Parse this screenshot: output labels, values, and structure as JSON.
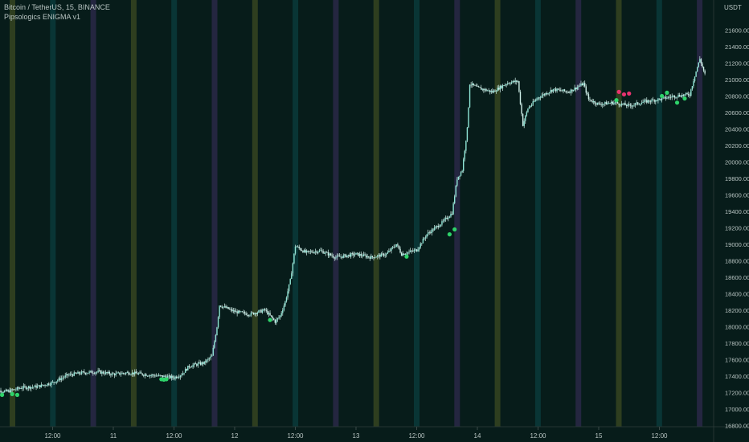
{
  "header": {
    "symbol_line": "Bitcoin / TetherUS, 15, BINANCE",
    "indicator_line": "Pipsologics ENIGMA v1"
  },
  "price_axis": {
    "unit": "USDT",
    "ticks": [
      "21600.00",
      "21400.00",
      "21200.00",
      "21000.00",
      "20800.00",
      "20600.00",
      "20400.00",
      "20200.00",
      "20000.00",
      "19800.00",
      "19600.00",
      "19400.00",
      "19200.00",
      "19000.00",
      "18800.00",
      "18600.00",
      "18400.00",
      "18200.00",
      "18000.00",
      "17800.00",
      "17600.00",
      "17400.00",
      "17200.00",
      "17000.00",
      "16800.00"
    ]
  },
  "time_axis": {
    "ticks": [
      "12:00",
      "11",
      "12:00",
      "12",
      "12:00",
      "13",
      "12:00",
      "14",
      "12:00",
      "15",
      "12:00"
    ]
  },
  "colors": {
    "background": "#071c1a",
    "candle": "#8fe6d6",
    "wick": "#cfeee8",
    "band_olive": "#3c4a22",
    "band_teal": "#0b3d3f",
    "band_purple": "#2f2a4e",
    "signal_buy": "#2ed36a",
    "signal_sell": "#e8336f",
    "axis_text": "#b8c4c2"
  },
  "chart_data": {
    "type": "line",
    "title": "Bitcoin / TetherUS, 15, BINANCE",
    "subtitle": "Pipsologics ENIGMA v1",
    "xlabel": "",
    "ylabel": "USDT",
    "ylim": [
      16800,
      21760
    ],
    "x_range": [
      "10 Jan 00:00",
      "15 Jan 21:00"
    ],
    "grid": false,
    "series": [
      {
        "values": [
          [
            "10 Jan 00:00",
            17230
          ],
          [
            "10 Jan 03:00",
            17210
          ],
          [
            "10 Jan 06:00",
            17260
          ],
          [
            "10 Jan 09:00",
            17270
          ],
          [
            "10 Jan 12:00",
            17320
          ],
          [
            "10 Jan 15:00",
            17410
          ],
          [
            "10 Jan 18:00",
            17440
          ],
          [
            "10 Jan 21:00",
            17450
          ],
          [
            "11 Jan 00:00",
            17420
          ],
          [
            "11 Jan 03:00",
            17440
          ],
          [
            "11 Jan 06:00",
            17420
          ],
          [
            "11 Jan 09:00",
            17400
          ],
          [
            "11 Jan 12:00",
            17380
          ],
          [
            "11 Jan 13:30",
            17420
          ],
          [
            "11 Jan 15:00",
            17520
          ],
          [
            "11 Jan 18:00",
            17560
          ],
          [
            "11 Jan 19:30",
            17640
          ],
          [
            "11 Jan 20:30",
            18000
          ],
          [
            "11 Jan 21:00",
            18260
          ],
          [
            "12 Jan 00:00",
            18180
          ],
          [
            "12 Jan 03:00",
            18150
          ],
          [
            "12 Jan 06:00",
            18200
          ],
          [
            "12 Jan 08:00",
            18060
          ],
          [
            "12 Jan 09:00",
            18130
          ],
          [
            "12 Jan 10:00",
            18300
          ],
          [
            "12 Jan 11:00",
            18560
          ],
          [
            "12 Jan 12:00",
            18980
          ],
          [
            "12 Jan 14:00",
            18900
          ],
          [
            "12 Jan 17:00",
            18920
          ],
          [
            "12 Jan 20:00",
            18840
          ],
          [
            "13 Jan 00:00",
            18880
          ],
          [
            "13 Jan 03:00",
            18840
          ],
          [
            "13 Jan 06:00",
            18880
          ],
          [
            "13 Jan 08:00",
            19000
          ],
          [
            "13 Jan 09:00",
            18880
          ],
          [
            "13 Jan 12:00",
            18930
          ],
          [
            "13 Jan 14:00",
            19120
          ],
          [
            "13 Jan 17:00",
            19260
          ],
          [
            "13 Jan 19:00",
            19380
          ],
          [
            "13 Jan 20:00",
            19800
          ],
          [
            "13 Jan 21:00",
            19900
          ],
          [
            "13 Jan 22:00",
            20400
          ],
          [
            "13 Jan 22:30",
            20950
          ],
          [
            "14 Jan 00:00",
            20900
          ],
          [
            "14 Jan 03:00",
            20850
          ],
          [
            "14 Jan 06:00",
            20960
          ],
          [
            "14 Jan 08:00",
            20980
          ],
          [
            "14 Jan 09:00",
            20450
          ],
          [
            "14 Jan 10:00",
            20650
          ],
          [
            "14 Jan 12:00",
            20780
          ],
          [
            "14 Jan 15:00",
            20880
          ],
          [
            "14 Jan 18:00",
            20850
          ],
          [
            "14 Jan 21:00",
            20950
          ],
          [
            "14 Jan 22:00",
            20760
          ],
          [
            "15 Jan 00:00",
            20700
          ],
          [
            "15 Jan 03:00",
            20720
          ],
          [
            "15 Jan 06:00",
            20680
          ],
          [
            "15 Jan 09:00",
            20730
          ],
          [
            "15 Jan 12:00",
            20760
          ],
          [
            "15 Jan 15:00",
            20800
          ],
          [
            "15 Jan 18:00",
            20820
          ],
          [
            "15 Jan 19:00",
            21050
          ],
          [
            "15 Jan 20:00",
            21250
          ],
          [
            "15 Jan 21:00",
            21060
          ]
        ]
      }
    ],
    "signals": [
      {
        "side": "buy",
        "x": "10 Jan 02:00",
        "y": 17170
      },
      {
        "side": "buy",
        "x": "10 Jan 04:00",
        "y": 17180
      },
      {
        "side": "buy",
        "x": "10 Jan 05:00",
        "y": 17170
      },
      {
        "side": "buy",
        "x": "11 Jan 09:30",
        "y": 17360
      },
      {
        "side": "buy",
        "x": "11 Jan 10:00",
        "y": 17355
      },
      {
        "side": "buy",
        "x": "11 Jan 10:30",
        "y": 17360
      },
      {
        "side": "buy",
        "x": "12 Jan 07:00",
        "y": 18080
      },
      {
        "side": "buy",
        "x": "13 Jan 10:00",
        "y": 18850
      },
      {
        "side": "buy",
        "x": "13 Jan 18:30",
        "y": 19120
      },
      {
        "side": "buy",
        "x": "13 Jan 19:30",
        "y": 19180
      },
      {
        "side": "sell",
        "x": "15 Jan 04:00",
        "y": 20850
      },
      {
        "side": "sell",
        "x": "15 Jan 05:00",
        "y": 20820
      },
      {
        "side": "sell",
        "x": "15 Jan 06:00",
        "y": 20830
      },
      {
        "side": "buy",
        "x": "15 Jan 03:30",
        "y": 20750
      },
      {
        "side": "buy",
        "x": "15 Jan 12:30",
        "y": 20800
      },
      {
        "side": "buy",
        "x": "15 Jan 13:30",
        "y": 20840
      },
      {
        "side": "buy",
        "x": "15 Jan 15:30",
        "y": 20720
      },
      {
        "side": "buy",
        "x": "15 Jan 17:00",
        "y": 20770
      }
    ]
  }
}
